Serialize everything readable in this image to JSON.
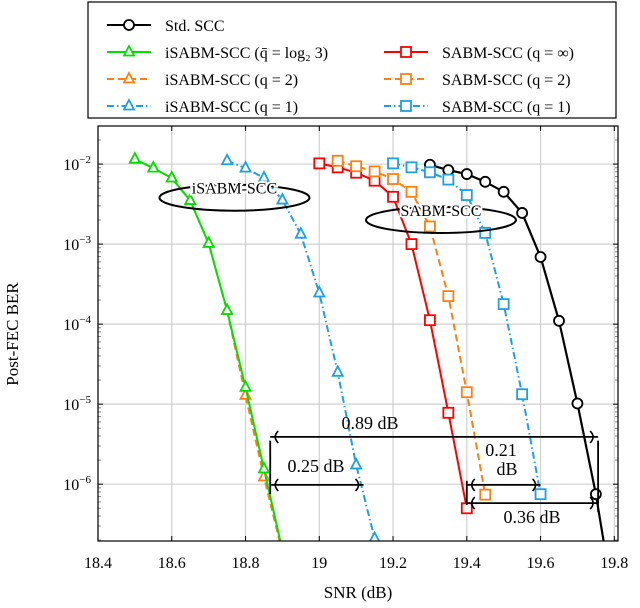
{
  "chart_data": {
    "type": "line",
    "xlabel": "SNR (dB)",
    "ylabel": "Post-FEC BER",
    "xlim": [
      18.4,
      19.81
    ],
    "ylim": [
      1.95e-07,
      0.0299
    ],
    "yscale": "log",
    "grid": true,
    "legend_placement": "top (above plot)",
    "x_ticks": [
      18.4,
      18.6,
      18.8,
      19,
      19.2,
      19.4,
      19.6,
      19.8
    ],
    "x_tick_labels": [
      "18.4",
      "18.6",
      "18.8",
      "19",
      "19.2",
      "19.4",
      "19.6",
      "19.8"
    ],
    "y_ticks": [
      -2,
      -3,
      -4,
      -5,
      -6
    ],
    "y_tick_base": "10",
    "y_tick_exponents": [
      "−2",
      "−3",
      "−4",
      "−5",
      "−6"
    ],
    "series": [
      {
        "name": "Std. SCC",
        "color": "#000000",
        "dash": "solid",
        "marker": "circle",
        "x": [
          19.3,
          19.35,
          19.4,
          19.45,
          19.5,
          19.55,
          19.6,
          19.65,
          19.7,
          19.75,
          19.8
        ],
        "y": [
          0.0098,
          0.0084,
          0.0075,
          0.006,
          0.0045,
          0.00245,
          0.00069,
          0.00011,
          1.02e-05,
          7.5e-07,
          3e-08
        ]
      },
      {
        "name": "iSABM-SCC (q̄ = log₂ 3)",
        "color": "#00e000",
        "dash": "solid",
        "marker": "triangle",
        "x": [
          18.5,
          18.55,
          18.6,
          18.65,
          18.7,
          18.75,
          18.8,
          18.85,
          18.9
        ],
        "y": [
          0.0115,
          0.0089,
          0.0067,
          0.0035,
          0.00102,
          0.000148,
          1.62e-05,
          1.55e-06,
          1.5e-07
        ]
      },
      {
        "name": "SABM-SCC (q = ∞)",
        "color": "#ff0000",
        "dash": "solid",
        "marker": "square",
        "x": [
          19.0,
          19.05,
          19.1,
          19.15,
          19.2,
          19.25,
          19.3,
          19.35,
          19.4
        ],
        "y": [
          0.0102,
          0.0091,
          0.0078,
          0.0062,
          0.0039,
          0.001,
          0.000112,
          7.8e-06,
          5e-07
        ]
      },
      {
        "name": "iSABM-SCC (q = 2)",
        "color": "#ff7f0e",
        "dash": "dashed",
        "marker": "triangle",
        "x": [
          18.5,
          18.55,
          18.6,
          18.65,
          18.7,
          18.75,
          18.8,
          18.85,
          18.9
        ],
        "y": [
          0.0115,
          0.0089,
          0.0067,
          0.0035,
          0.00102,
          0.000148,
          1.29e-05,
          1.23e-06,
          1.4e-07
        ]
      },
      {
        "name": "SABM-SCC (q = 2)",
        "color": "#ff7f0e",
        "dash": "dashed",
        "marker": "square",
        "x": [
          19.05,
          19.1,
          19.15,
          19.2,
          19.25,
          19.3,
          19.35,
          19.4,
          19.45
        ],
        "y": [
          0.011,
          0.0094,
          0.0081,
          0.0065,
          0.0045,
          0.00166,
          0.000224,
          1.41e-05,
          7.4e-07
        ]
      },
      {
        "name": "iSABM-SCC (q = 1)",
        "color": "#1ba1e2",
        "dash": "dashdot",
        "marker": "triangle",
        "x": [
          18.75,
          18.8,
          18.85,
          18.9,
          18.95,
          19.0,
          19.05,
          19.1,
          19.15
        ],
        "y": [
          0.011,
          0.0089,
          0.0067,
          0.00355,
          0.00133,
          0.000245,
          2.5e-05,
          1.74e-06,
          2.1e-07
        ]
      },
      {
        "name": "SABM-SCC (q = 1)",
        "color": "#1ba1e2",
        "dash": "dashdot",
        "marker": "square",
        "x": [
          19.2,
          19.25,
          19.3,
          19.35,
          19.4,
          19.45,
          19.5,
          19.55,
          19.6
        ],
        "y": [
          0.0102,
          0.0091,
          0.0079,
          0.0064,
          0.0041,
          0.00138,
          0.000178,
          1.33e-05,
          7.5e-07
        ]
      }
    ],
    "annotations": {
      "ellipses": [
        {
          "label": "iSABM-SCC",
          "x": 18.77,
          "y": 0.0038
        },
        {
          "label": "SABM-SCC",
          "x": 19.33,
          "y": 0.002
        }
      ],
      "arrows": [
        {
          "label": "0.89 dB",
          "x_from": 18.867,
          "x_to": 19.756,
          "y": 3.9e-06
        },
        {
          "label": "0.25 dB",
          "x_from": 18.867,
          "x_to": 19.12,
          "y": 9.8e-07
        },
        {
          "label_line1": "0.21",
          "label_line2": "dB",
          "x_from": 19.4,
          "x_to": 19.6,
          "y": 9.8e-07
        },
        {
          "label": "0.36 dB",
          "x_from": 19.4,
          "x_to": 19.756,
          "y": 5.8e-07
        }
      ]
    }
  },
  "legend": {
    "rows": [
      [
        {
          "series": 0
        }
      ],
      [
        {
          "series": 1
        },
        {
          "series": 2
        }
      ],
      [
        {
          "series": 3
        },
        {
          "series": 4
        }
      ],
      [
        {
          "series": 5
        },
        {
          "series": 6
        }
      ]
    ]
  }
}
